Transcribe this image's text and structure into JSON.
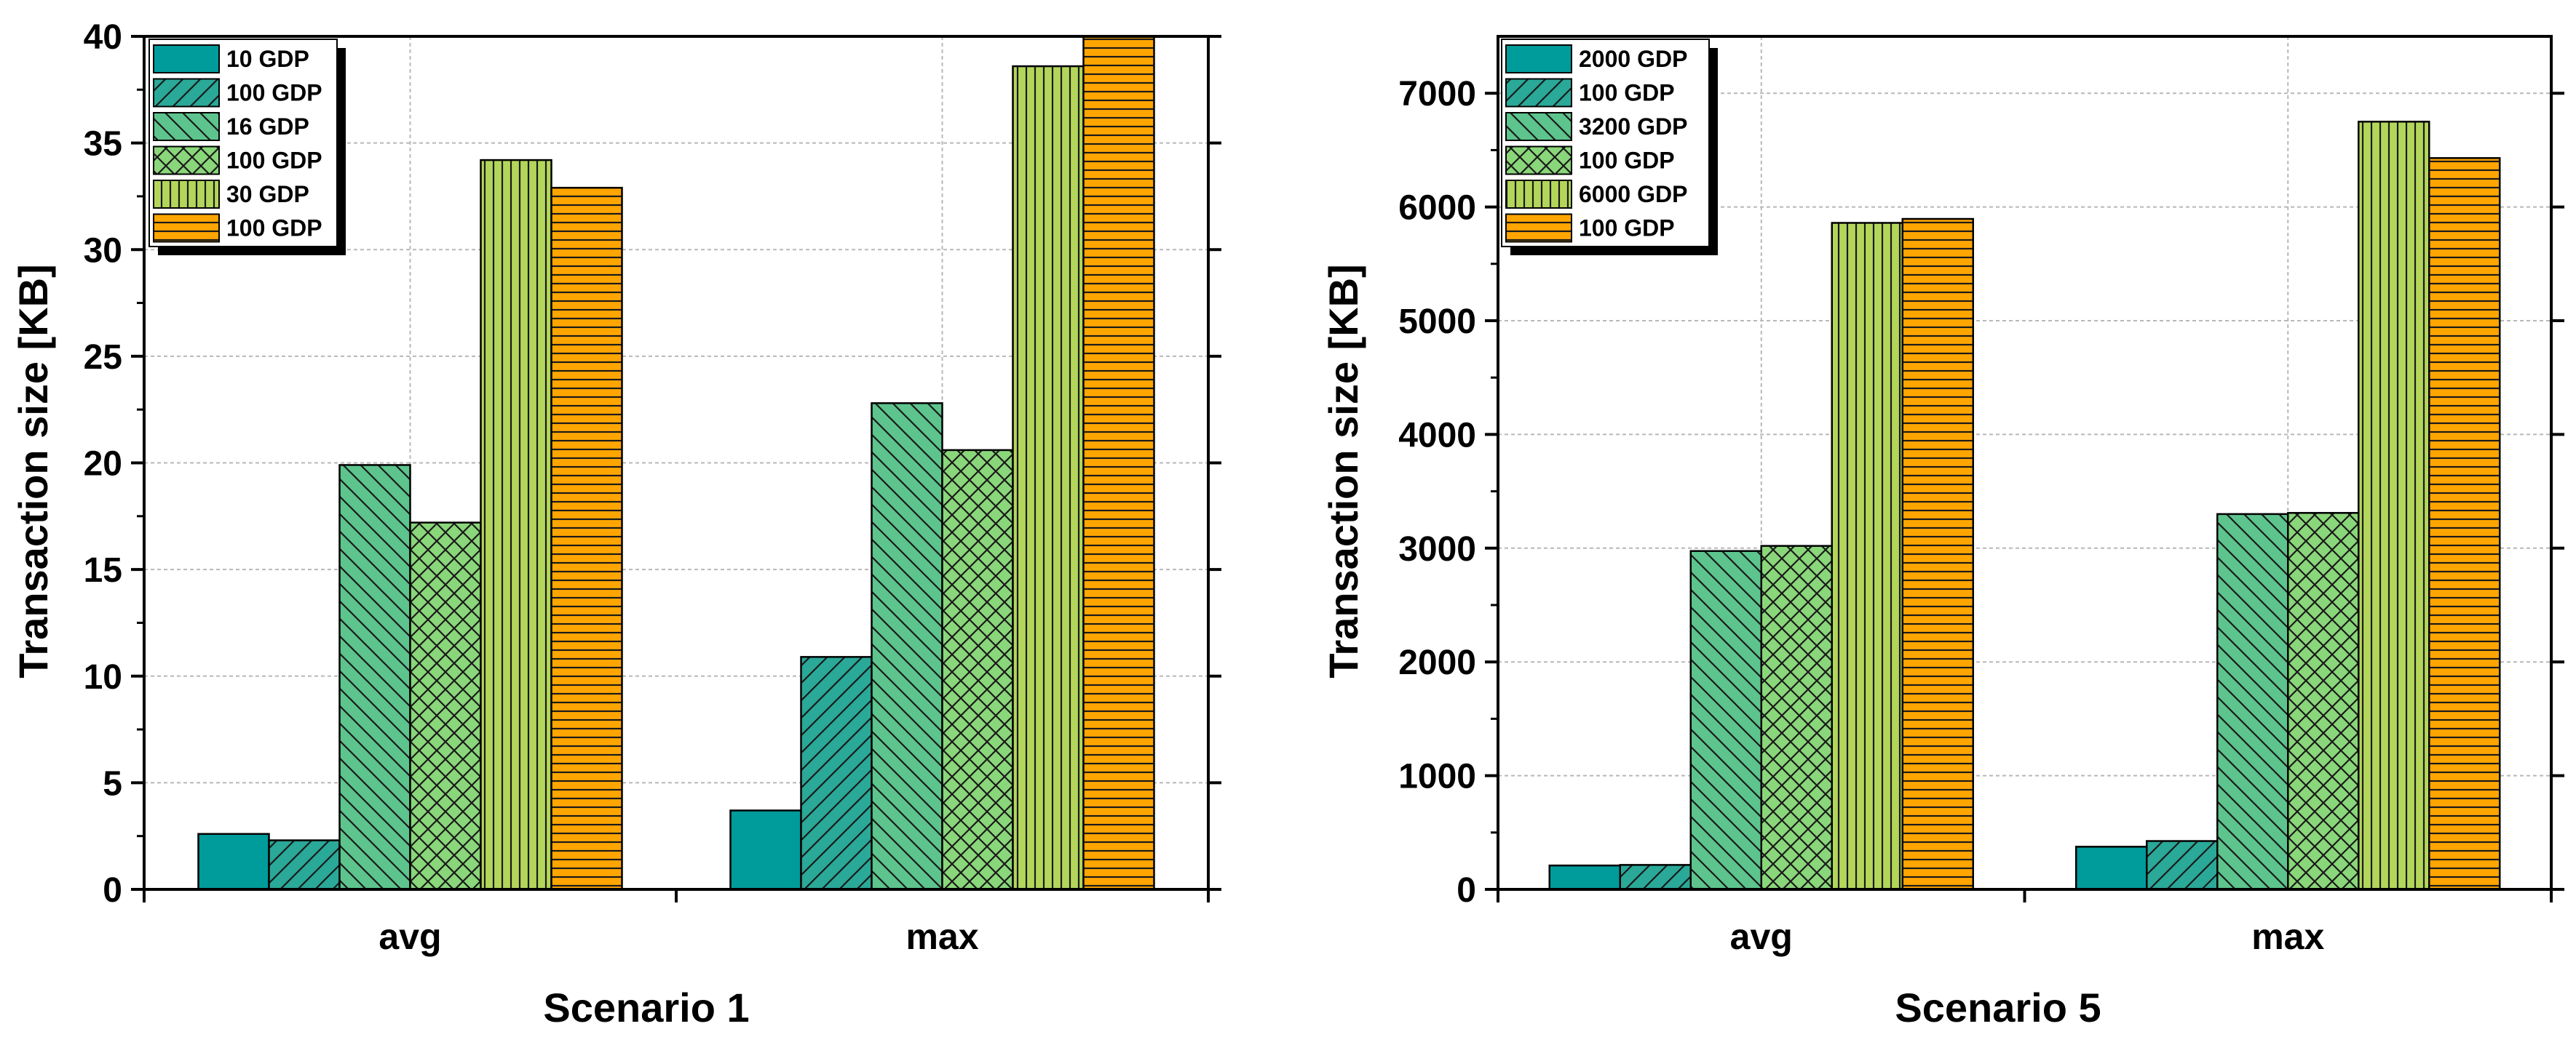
{
  "chart_data": [
    {
      "type": "bar",
      "title": "Scenario 1",
      "xlabel": "Scenario 1",
      "ylabel": "Transaction size [KB]",
      "categories": [
        "avg",
        "max"
      ],
      "ylim": [
        0,
        40
      ],
      "yticks": [
        0,
        5,
        10,
        15,
        20,
        25,
        30,
        35,
        40
      ],
      "grid": true,
      "legend_position": "top-left",
      "series": [
        {
          "name": "10 GDP",
          "values": [
            2.6,
            3.7
          ],
          "color": "#009b9b",
          "pattern": "solid"
        },
        {
          "name": "100 GDP",
          "values": [
            2.3,
            10.9
          ],
          "color": "#2aa898",
          "pattern": "diag-forward"
        },
        {
          "name": "16 GDP",
          "values": [
            19.9,
            22.8
          ],
          "color": "#5cc48c",
          "pattern": "diag-back"
        },
        {
          "name": "100 GDP",
          "values": [
            17.2,
            20.6
          ],
          "color": "#8ad67a",
          "pattern": "crosshatch"
        },
        {
          "name": "30 GDP",
          "values": [
            34.2,
            38.6
          ],
          "color": "#b3d65a",
          "pattern": "vertical"
        },
        {
          "name": "100 GDP",
          "values": [
            32.9,
            40.0
          ],
          "color": "#ffa500",
          "pattern": "horizontal"
        }
      ]
    },
    {
      "type": "bar",
      "title": "Scenario 5",
      "xlabel": "Scenario 5",
      "ylabel": "Transaction size [KB]",
      "categories": [
        "avg",
        "max"
      ],
      "ylim": [
        0,
        7500
      ],
      "yticks": [
        0,
        1000,
        2000,
        3000,
        4000,
        5000,
        6000,
        7000
      ],
      "grid": true,
      "legend_position": "top-left",
      "series": [
        {
          "name": "2000 GDP",
          "values": [
            210,
            375
          ],
          "color": "#009b9b",
          "pattern": "solid"
        },
        {
          "name": "100 GDP",
          "values": [
            215,
            425
          ],
          "color": "#2aa898",
          "pattern": "diag-forward"
        },
        {
          "name": "3200 GDP",
          "values": [
            2975,
            3300
          ],
          "color": "#5cc48c",
          "pattern": "diag-back"
        },
        {
          "name": "100 GDP",
          "values": [
            3020,
            3310
          ],
          "color": "#8ad67a",
          "pattern": "crosshatch"
        },
        {
          "name": "6000 GDP",
          "values": [
            5860,
            6750
          ],
          "color": "#b3d65a",
          "pattern": "vertical"
        },
        {
          "name": "100 GDP",
          "values": [
            5895,
            6430
          ],
          "color": "#ffa500",
          "pattern": "horizontal"
        }
      ]
    }
  ]
}
